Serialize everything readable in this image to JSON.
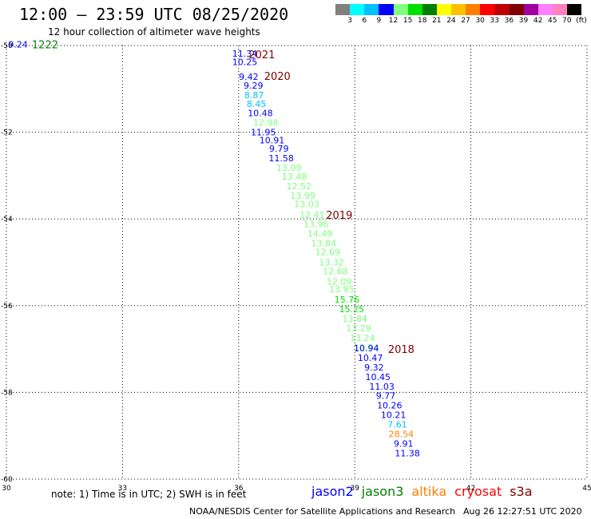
{
  "header": {
    "title": "12:00 – 23:59 UTC 08/25/2020",
    "subtitle": "12 hour collection of altimeter wave heights"
  },
  "colorbar": {
    "colors": [
      "#808080",
      "#00ffff",
      "#00c0ff",
      "#0000ff",
      "#80ff80",
      "#00e000",
      "#008000",
      "#ffff00",
      "#ffc000",
      "#ff8000",
      "#ff0000",
      "#c00000",
      "#800000",
      "#a000a0",
      "#ff80ff",
      "#ff80c0",
      "#000000"
    ],
    "labels": [
      "3",
      "6",
      "9",
      "12",
      "15",
      "18",
      "21",
      "24",
      "27",
      "30",
      "33",
      "36",
      "39",
      "42",
      "45",
      "70",
      "(ft)"
    ]
  },
  "chart_data": {
    "type": "scatter",
    "xlim": [
      30,
      45
    ],
    "ylim": [
      -60,
      -50
    ],
    "x_ticks": [
      30,
      33,
      36,
      39,
      42,
      45
    ],
    "y_ticks": [
      -50,
      -52,
      -54,
      -56,
      -58,
      -60
    ],
    "x_tick_labels": [
      "30",
      "33",
      "36",
      "39",
      "42",
      "45"
    ],
    "y_tick_labels": [
      "-50",
      "-52",
      "-54",
      "-56",
      "-58",
      "-60"
    ],
    "grid": true,
    "points": [
      {
        "x": 30.3,
        "y": -49.97,
        "label": "9.24",
        "color": "#0000ff"
      },
      {
        "x": 36.16,
        "y": -50.18,
        "label": "11.34",
        "color": "#0000ff"
      },
      {
        "x": 36.16,
        "y": -50.38,
        "label": "10.25",
        "color": "#0000ff"
      },
      {
        "x": 36.26,
        "y": -50.72,
        "label": "9.42",
        "color": "#0000ff"
      },
      {
        "x": 36.38,
        "y": -50.92,
        "label": "9.29",
        "color": "#0000ff"
      },
      {
        "x": 36.4,
        "y": -51.14,
        "label": "8.87",
        "color": "#00c0ff"
      },
      {
        "x": 36.46,
        "y": -51.34,
        "label": "8.45",
        "color": "#00c0ff"
      },
      {
        "x": 36.56,
        "y": -51.56,
        "label": "10.48",
        "color": "#0000ff"
      },
      {
        "x": 36.7,
        "y": -51.78,
        "label": "12.98",
        "color": "#80ff80"
      },
      {
        "x": 36.64,
        "y": -52.0,
        "label": "11.95",
        "color": "#0000ff"
      },
      {
        "x": 36.86,
        "y": -52.18,
        "label": "10.91",
        "color": "#0000ff"
      },
      {
        "x": 37.04,
        "y": -52.38,
        "label": "9.79",
        "color": "#0000ff"
      },
      {
        "x": 37.1,
        "y": -52.6,
        "label": "11.58",
        "color": "#0000ff"
      },
      {
        "x": 37.3,
        "y": -52.82,
        "label": "13.09",
        "color": "#80ff80"
      },
      {
        "x": 37.44,
        "y": -53.02,
        "label": "13.48",
        "color": "#80ff80"
      },
      {
        "x": 37.56,
        "y": -53.24,
        "label": "12.52",
        "color": "#80ff80"
      },
      {
        "x": 37.66,
        "y": -53.46,
        "label": "13.99",
        "color": "#80ff80"
      },
      {
        "x": 37.76,
        "y": -53.66,
        "label": "13.03",
        "color": "#80ff80"
      },
      {
        "x": 37.9,
        "y": -53.9,
        "label": "12.41",
        "color": "#80ff80"
      },
      {
        "x": 38.0,
        "y": -54.12,
        "label": "13.96",
        "color": "#80ff80"
      },
      {
        "x": 38.1,
        "y": -54.34,
        "label": "14.49",
        "color": "#80ff80"
      },
      {
        "x": 38.2,
        "y": -54.56,
        "label": "13.84",
        "color": "#80ff80"
      },
      {
        "x": 38.3,
        "y": -54.76,
        "label": "12.69",
        "color": "#80ff80"
      },
      {
        "x": 38.4,
        "y": -55.0,
        "label": "13.32",
        "color": "#80ff80"
      },
      {
        "x": 38.5,
        "y": -55.2,
        "label": "12.68",
        "color": "#80ff80"
      },
      {
        "x": 38.6,
        "y": -55.44,
        "label": "12.09",
        "color": "#80ff80"
      },
      {
        "x": 38.66,
        "y": -55.62,
        "label": "13.95",
        "color": "#80ff80"
      },
      {
        "x": 38.8,
        "y": -55.86,
        "label": "15.76",
        "color": "#00e000"
      },
      {
        "x": 38.92,
        "y": -56.08,
        "label": "15.25",
        "color": "#00e000"
      },
      {
        "x": 39.0,
        "y": -56.3,
        "label": "13.84",
        "color": "#80ff80"
      },
      {
        "x": 39.1,
        "y": -56.52,
        "label": "13.29",
        "color": "#80ff80"
      },
      {
        "x": 39.2,
        "y": -56.74,
        "label": "13.24",
        "color": "#80ff80"
      },
      {
        "x": 39.3,
        "y": -56.96,
        "label": "12.94",
        "color": "#80ff80"
      },
      {
        "x": 39.3,
        "y": -56.98,
        "label": "10.94",
        "color": "#0000ff"
      },
      {
        "x": 39.4,
        "y": -57.2,
        "label": "10.47",
        "color": "#0000ff"
      },
      {
        "x": 39.5,
        "y": -57.42,
        "label": "9.32",
        "color": "#0000ff"
      },
      {
        "x": 39.6,
        "y": -57.64,
        "label": "10.45",
        "color": "#0000ff"
      },
      {
        "x": 39.7,
        "y": -57.86,
        "label": "11.03",
        "color": "#0000ff"
      },
      {
        "x": 39.8,
        "y": -58.08,
        "label": "9.77",
        "color": "#0000ff"
      },
      {
        "x": 39.9,
        "y": -58.3,
        "label": "10.26",
        "color": "#0000ff"
      },
      {
        "x": 40.0,
        "y": -58.52,
        "label": "10.21",
        "color": "#0000ff"
      },
      {
        "x": 40.1,
        "y": -58.74,
        "label": "7.61",
        "color": "#00c0ff"
      },
      {
        "x": 40.2,
        "y": -58.96,
        "label": "28.54",
        "color": "#ff8000"
      },
      {
        "x": 40.26,
        "y": -59.18,
        "label": "9.91",
        "color": "#0000ff"
      },
      {
        "x": 40.36,
        "y": -59.4,
        "label": "11.38",
        "color": "#0000ff"
      }
    ],
    "annotations": [
      {
        "x": 31.0,
        "y": -49.97,
        "text": "1222",
        "color": "#008000"
      },
      {
        "x": 36.6,
        "y": -50.2,
        "text": "2021",
        "color": "#800000"
      },
      {
        "x": 37.0,
        "y": -50.7,
        "text": "2020",
        "color": "#800000"
      },
      {
        "x": 38.6,
        "y": -53.9,
        "text": "2019",
        "color": "#800000"
      },
      {
        "x": 40.2,
        "y": -57.0,
        "text": "2018",
        "color": "#800000"
      }
    ]
  },
  "footer": {
    "note": "note:  1) Time is in UTC;  2) SWH is in feet",
    "satellites": [
      {
        "name": "jason2",
        "color": "#0000ff"
      },
      {
        "name": "jason3",
        "color": "#008000"
      },
      {
        "name": "altika",
        "color": "#ff8000"
      },
      {
        "name": "cryosat",
        "color": "#ff0000"
      },
      {
        "name": "s3a",
        "color": "#800000"
      }
    ],
    "credit": "NOAA/NESDIS Center for Satellite Applications and Research",
    "timestamp": "Aug 26 12:27:51 UTC 2020"
  }
}
